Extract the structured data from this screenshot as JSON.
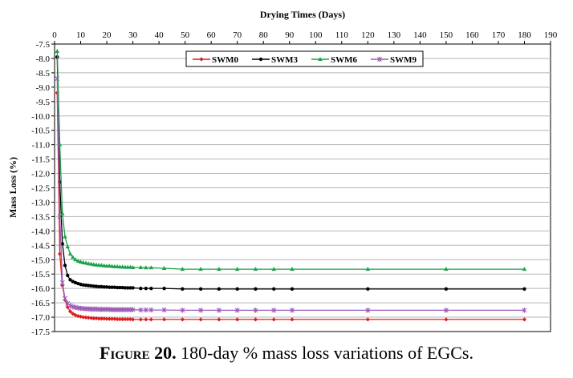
{
  "caption": {
    "label": "Figure 20.",
    "text": " 180-day % mass loss variations of EGCs."
  },
  "chart_data": {
    "type": "line",
    "title": "",
    "xlabel": "Drying Times (Days)",
    "ylabel": "Mass Loss (%)",
    "xlim": [
      0,
      190
    ],
    "ylim": [
      -17.5,
      -7.5
    ],
    "x_ticks": [
      "0",
      "10",
      "20",
      "30",
      "40",
      "50",
      "60",
      "70",
      "80",
      "90",
      "100",
      "110",
      "120",
      "130",
      "140",
      "150",
      "160",
      "170",
      "180",
      "190"
    ],
    "y_ticks": [
      "-7.5",
      "-8.0",
      "-8.5",
      "-9.0",
      "-9.5",
      "-10.0",
      "-10.5",
      "-11.0",
      "-11.5",
      "-12.0",
      "-12.5",
      "-13.0",
      "-13.5",
      "-14.0",
      "-14.5",
      "-15.0",
      "-15.5",
      "-16.0",
      "-16.5",
      "-17.0",
      "-17.5"
    ],
    "x_axis_position": "top",
    "grid": "horizontal",
    "legend_position": "top-center",
    "series": [
      {
        "name": "SWM0",
        "color": "#e31a1c",
        "marker": "diamond",
        "x": [
          1,
          2,
          3,
          4,
          5,
          6,
          7,
          8,
          9,
          10,
          11,
          12,
          13,
          14,
          15,
          16,
          17,
          18,
          19,
          20,
          21,
          22,
          23,
          24,
          25,
          26,
          27,
          28,
          29,
          30,
          33,
          35,
          37,
          42,
          49,
          56,
          63,
          70,
          77,
          84,
          91,
          120,
          150,
          180
        ],
        "y": [
          -9.2,
          -14.8,
          -15.9,
          -16.4,
          -16.65,
          -16.8,
          -16.88,
          -16.93,
          -16.96,
          -16.98,
          -17.0,
          -17.01,
          -17.02,
          -17.03,
          -17.04,
          -17.04,
          -17.05,
          -17.05,
          -17.05,
          -17.06,
          -17.06,
          -17.06,
          -17.06,
          -17.07,
          -17.07,
          -17.07,
          -17.07,
          -17.07,
          -17.07,
          -17.08,
          -17.08,
          -17.08,
          -17.08,
          -17.08,
          -17.08,
          -17.08,
          -17.08,
          -17.08,
          -17.08,
          -17.08,
          -17.08,
          -17.08,
          -17.08,
          -17.08
        ]
      },
      {
        "name": "SWM3",
        "color": "#000000",
        "marker": "circle",
        "x": [
          1,
          2,
          3,
          4,
          5,
          6,
          7,
          8,
          9,
          10,
          11,
          12,
          13,
          14,
          15,
          16,
          17,
          18,
          19,
          20,
          21,
          22,
          23,
          24,
          25,
          26,
          27,
          28,
          29,
          30,
          33,
          35,
          37,
          42,
          49,
          56,
          63,
          70,
          77,
          84,
          91,
          120,
          150,
          180
        ],
        "y": [
          -7.95,
          -12.3,
          -14.45,
          -15.2,
          -15.55,
          -15.7,
          -15.76,
          -15.8,
          -15.83,
          -15.86,
          -15.88,
          -15.89,
          -15.9,
          -15.91,
          -15.92,
          -15.93,
          -15.94,
          -15.94,
          -15.95,
          -15.95,
          -15.96,
          -15.96,
          -15.96,
          -15.97,
          -15.97,
          -15.97,
          -15.98,
          -15.98,
          -15.98,
          -15.98,
          -16.0,
          -16.0,
          -16.0,
          -16.0,
          -16.02,
          -16.02,
          -16.02,
          -16.02,
          -16.02,
          -16.02,
          -16.02,
          -16.02,
          -16.02,
          -16.02
        ]
      },
      {
        "name": "SWM6",
        "color": "#1aa34a",
        "marker": "triangle",
        "x": [
          1,
          2,
          3,
          4,
          5,
          6,
          7,
          8,
          9,
          10,
          11,
          12,
          13,
          14,
          15,
          16,
          17,
          18,
          19,
          20,
          21,
          22,
          23,
          24,
          25,
          26,
          27,
          28,
          29,
          30,
          33,
          35,
          37,
          42,
          49,
          56,
          63,
          70,
          77,
          84,
          91,
          120,
          150,
          180
        ],
        "y": [
          -7.75,
          -11.0,
          -13.4,
          -14.2,
          -14.55,
          -14.8,
          -14.92,
          -15.0,
          -15.05,
          -15.08,
          -15.1,
          -15.12,
          -15.14,
          -15.15,
          -15.17,
          -15.18,
          -15.19,
          -15.2,
          -15.21,
          -15.22,
          -15.22,
          -15.23,
          -15.24,
          -15.24,
          -15.25,
          -15.25,
          -15.26,
          -15.26,
          -15.26,
          -15.27,
          -15.27,
          -15.28,
          -15.28,
          -15.3,
          -15.33,
          -15.33,
          -15.33,
          -15.33,
          -15.33,
          -15.33,
          -15.33,
          -15.33,
          -15.33,
          -15.33
        ]
      },
      {
        "name": "SWM9",
        "color": "#9b59b6",
        "marker": "star",
        "x": [
          1,
          2,
          3,
          4,
          5,
          6,
          7,
          8,
          9,
          10,
          11,
          12,
          13,
          14,
          15,
          16,
          17,
          18,
          19,
          20,
          21,
          22,
          23,
          24,
          25,
          26,
          27,
          28,
          29,
          30,
          33,
          35,
          37,
          42,
          49,
          56,
          63,
          70,
          77,
          84,
          91,
          120,
          150,
          180
        ],
        "y": [
          -8.7,
          -13.5,
          -15.8,
          -16.35,
          -16.52,
          -16.6,
          -16.64,
          -16.66,
          -16.68,
          -16.69,
          -16.7,
          -16.71,
          -16.71,
          -16.72,
          -16.72,
          -16.72,
          -16.73,
          -16.73,
          -16.73,
          -16.73,
          -16.73,
          -16.74,
          -16.74,
          -16.74,
          -16.74,
          -16.74,
          -16.74,
          -16.74,
          -16.74,
          -16.74,
          -16.75,
          -16.75,
          -16.75,
          -16.75,
          -16.76,
          -16.76,
          -16.76,
          -16.76,
          -16.76,
          -16.76,
          -16.76,
          -16.76,
          -16.76,
          -16.76
        ]
      }
    ]
  }
}
